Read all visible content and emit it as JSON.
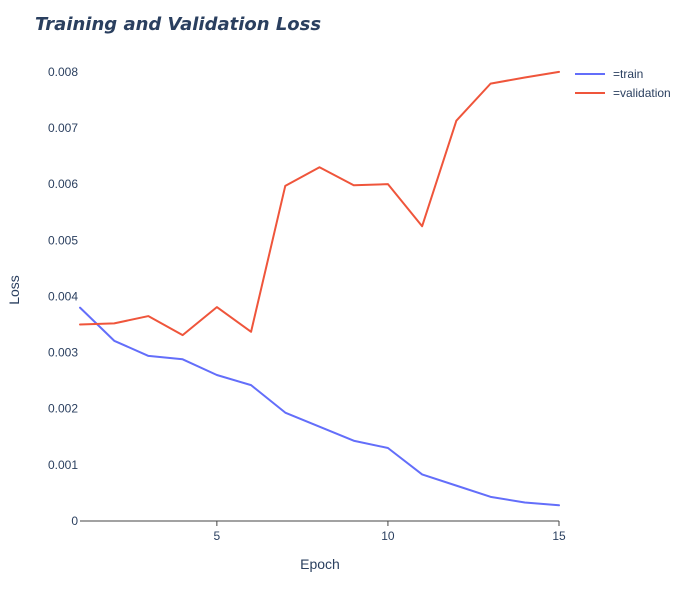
{
  "chart_data": {
    "type": "line",
    "title": "Training and Validation Loss",
    "xlabel": "Epoch",
    "ylabel": "Loss",
    "x": [
      1,
      2,
      3,
      4,
      5,
      6,
      7,
      8,
      9,
      10,
      11,
      12,
      13,
      14,
      15
    ],
    "xlim": [
      1,
      15
    ],
    "ylim": [
      0,
      0.0083
    ],
    "xticks": [
      5,
      10,
      15
    ],
    "yticks": [
      0,
      0.001,
      0.002,
      0.003,
      0.004,
      0.005,
      0.006,
      0.007,
      0.008
    ],
    "xtick_labels": [
      "5",
      "10",
      "15"
    ],
    "ytick_labels": [
      "0",
      "0.001",
      "0.002",
      "0.003",
      "0.004",
      "0.005",
      "0.006",
      "0.007",
      "0.008"
    ],
    "grid": false,
    "legend_position": "top-right",
    "series": [
      {
        "name": "=train",
        "color": "#636efa",
        "values": [
          0.0038,
          0.00321,
          0.00294,
          0.00288,
          0.0026,
          0.00242,
          0.00193,
          0.00168,
          0.00143,
          0.0013,
          0.00083,
          0.00063,
          0.00043,
          0.00033,
          0.00028
        ]
      },
      {
        "name": "=validation",
        "color": "#ef553b",
        "values": [
          0.0035,
          0.00352,
          0.00365,
          0.00331,
          0.00381,
          0.00337,
          0.00597,
          0.0063,
          0.00598,
          0.006,
          0.00525,
          0.00713,
          0.00779,
          0.0079,
          0.008
        ]
      }
    ]
  }
}
